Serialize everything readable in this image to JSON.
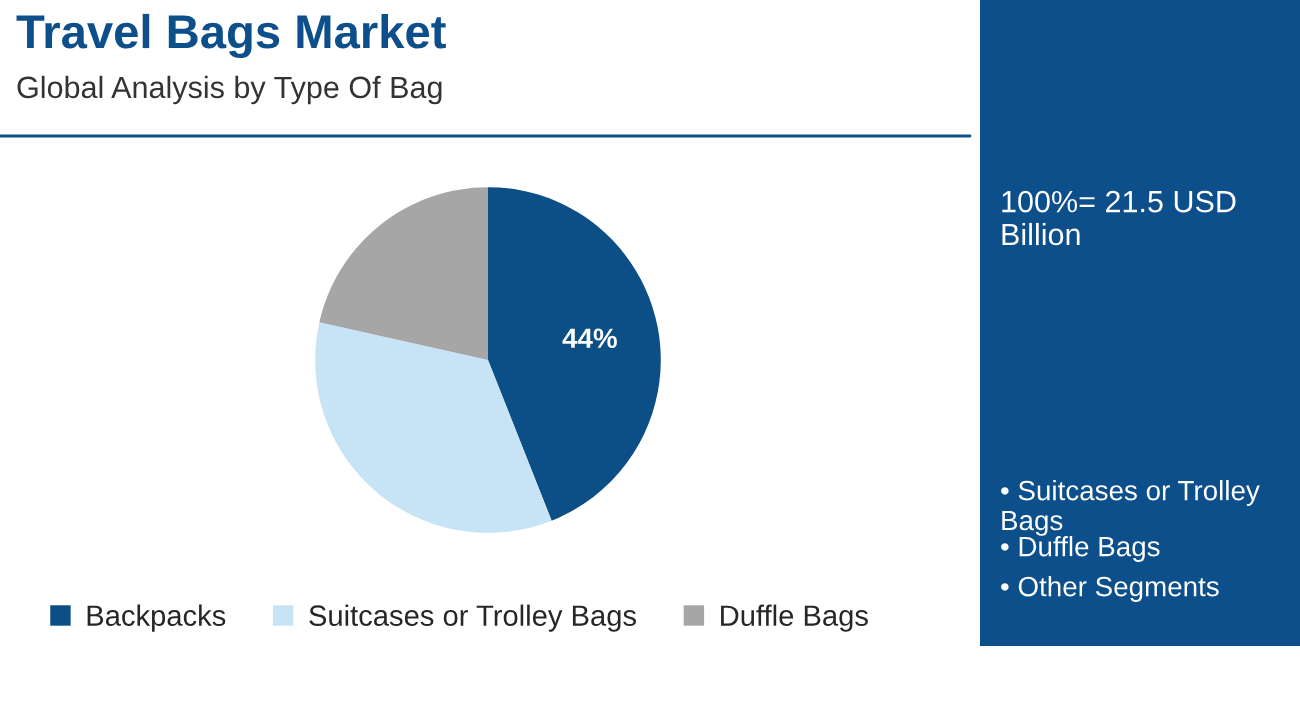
{
  "chart_data": {
    "type": "pie",
    "title": "Travel Bags Market",
    "subtitle": "Global Analysis by Type Of Bag",
    "categories": [
      "Backpacks",
      "Suitcases or Trolley Bags",
      "Duffle Bags"
    ],
    "values": [
      44,
      34.5,
      21.5
    ],
    "colors": [
      "#0c4e86",
      "#c7e4f6",
      "#a6a6a6"
    ],
    "value_labels": [
      "44%",
      null,
      null
    ],
    "legend": "bottom",
    "annotations": [
      "100%= 21.5 USD Billion",
      "• Suitcases or Trolley Bags",
      "• Duffle Bags",
      "• Other Segments"
    ]
  }
}
